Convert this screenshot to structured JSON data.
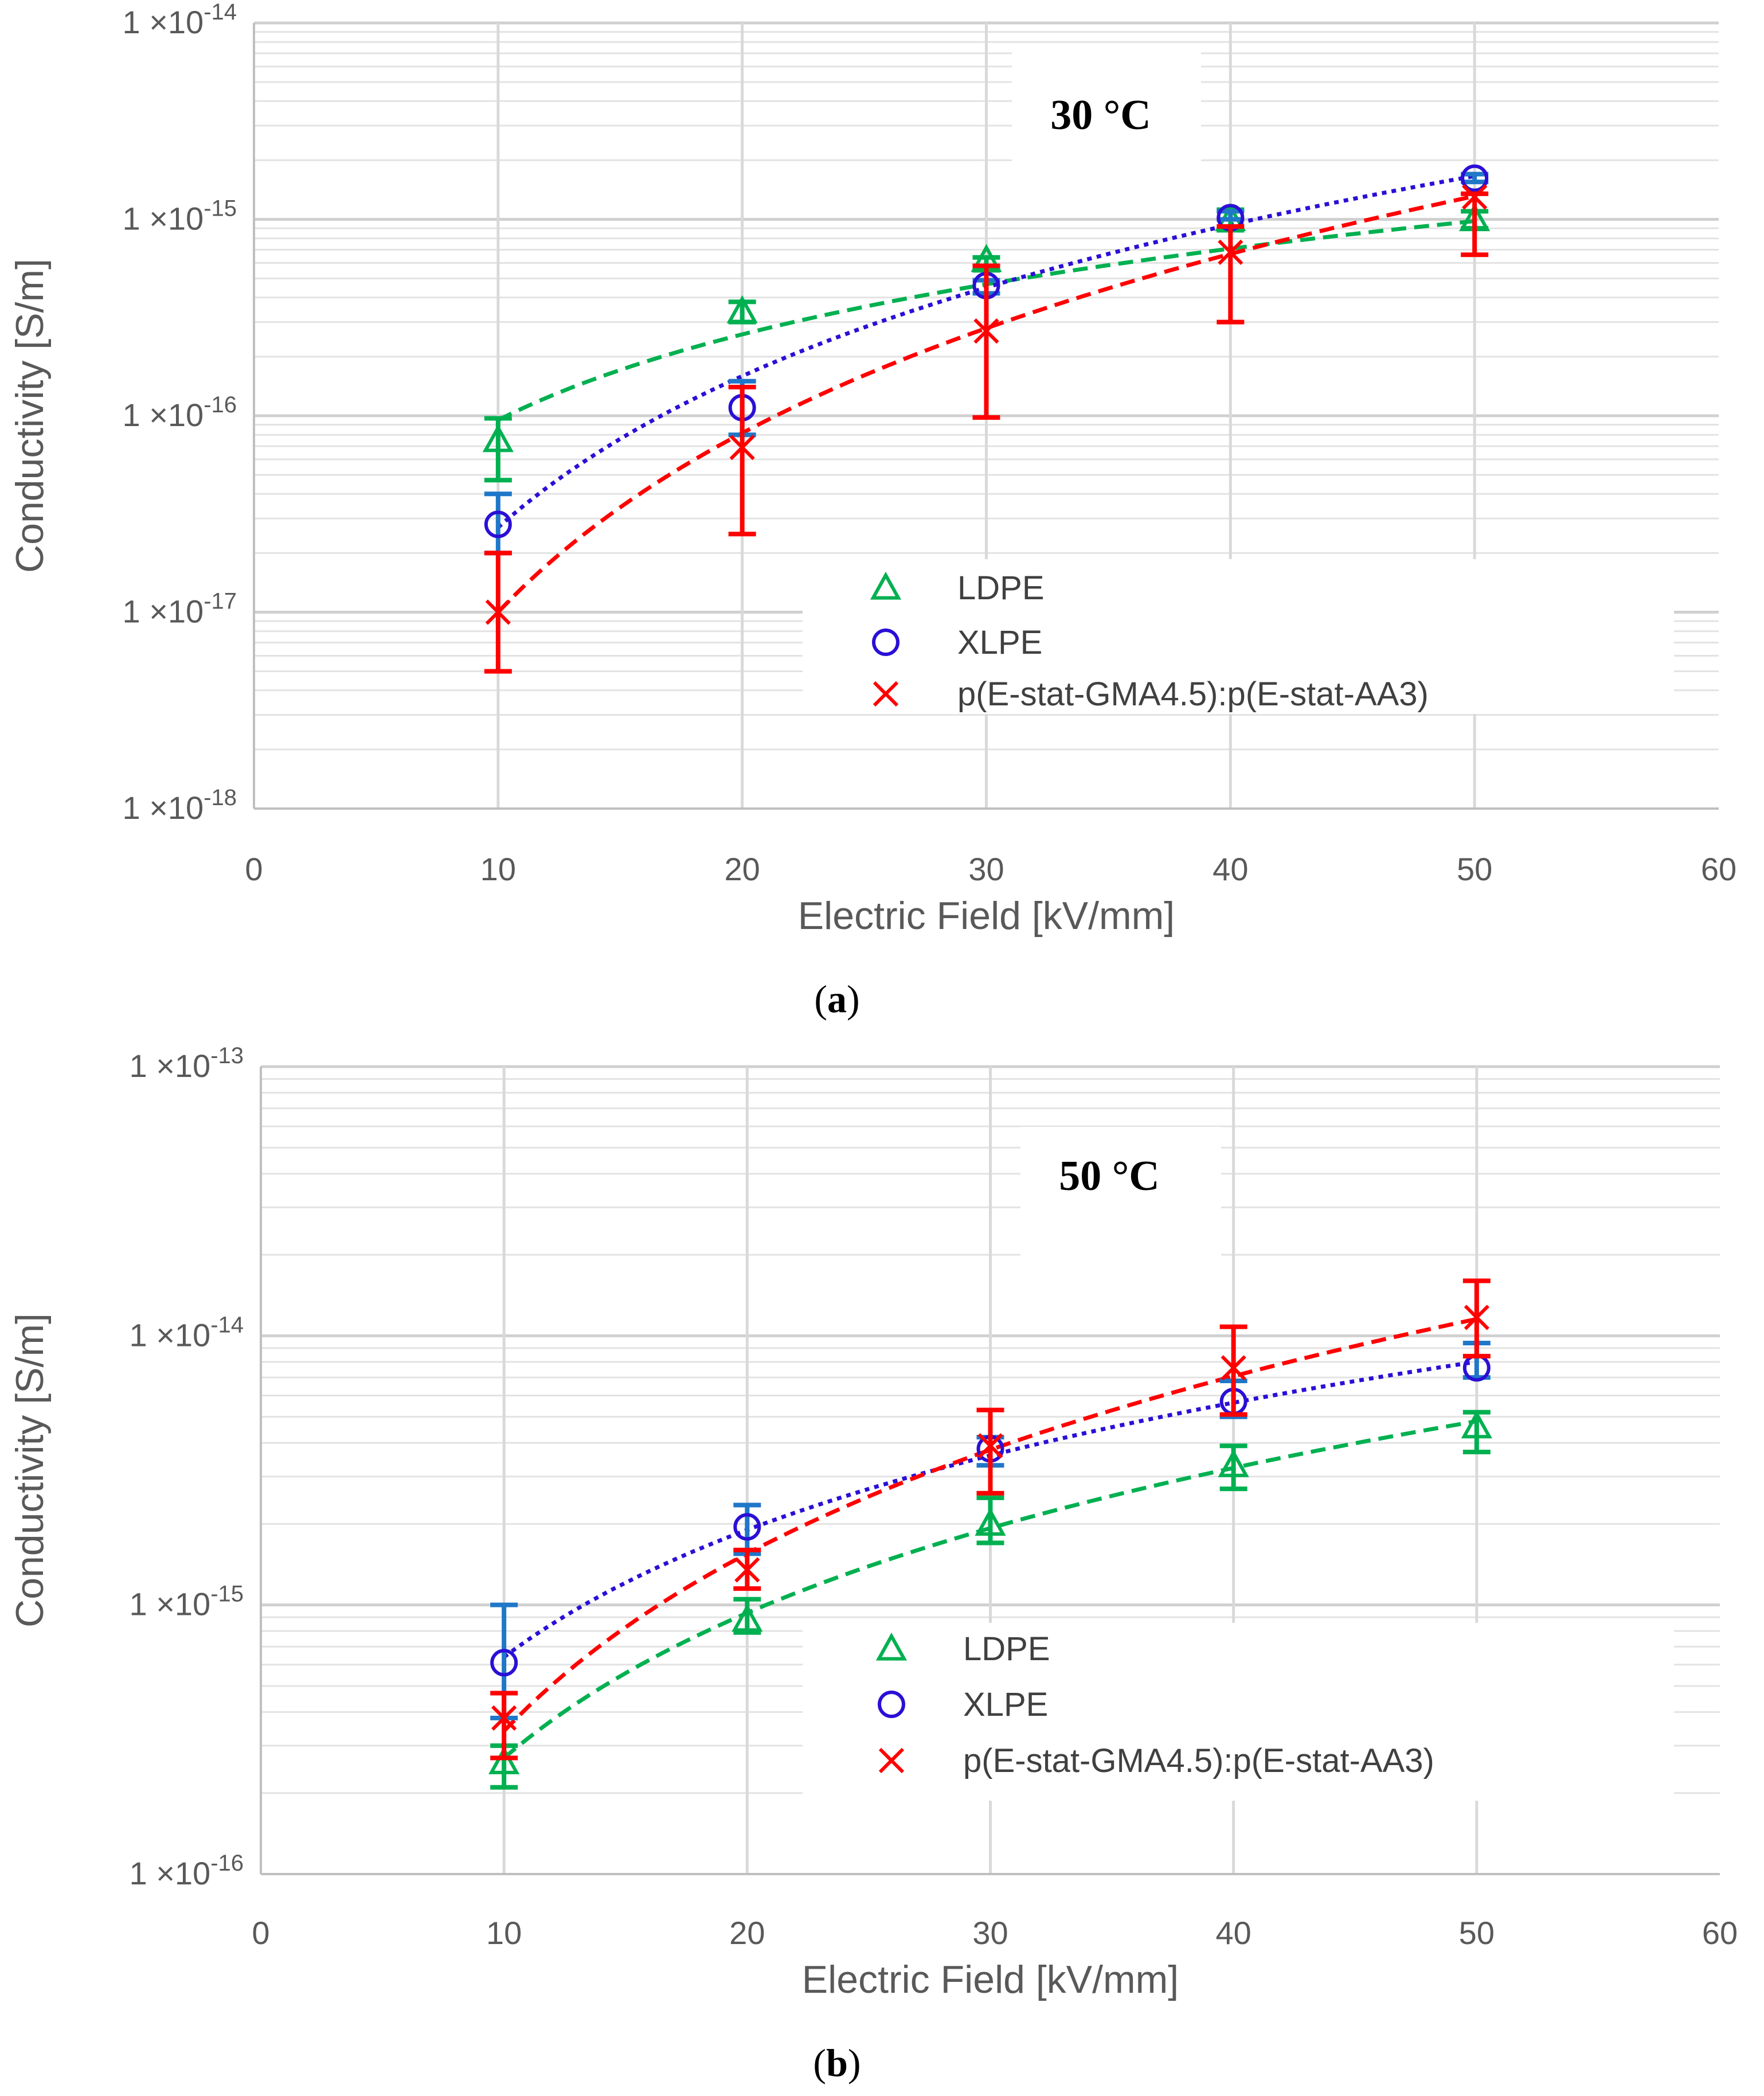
{
  "chart_data": [
    {
      "type": "scatter",
      "panel_label": "a",
      "annotation": "30 °C",
      "xlabel": "Electric Field [kV/mm]",
      "ylabel": "Conductivity [S/m]",
      "xlim": [
        0,
        60
      ],
      "ylim": [
        1e-18,
        1e-14
      ],
      "yscale": "log",
      "grid": true,
      "legend_position": "center-right",
      "x_ticks": [
        "0",
        "10",
        "20",
        "30",
        "40",
        "50",
        "60"
      ],
      "y_ticks": [
        {
          "mantissa": "1 ×10",
          "exponent": "-18"
        },
        {
          "mantissa": "1 ×10",
          "exponent": "-17"
        },
        {
          "mantissa": "1 ×10",
          "exponent": "-16"
        },
        {
          "mantissa": "1 ×10",
          "exponent": "-15"
        },
        {
          "mantissa": "1 ×10",
          "exponent": "-14"
        }
      ],
      "series": [
        {
          "name": "LDPE",
          "marker": "triangle",
          "color": "#00b050",
          "errorColor": "#00b050",
          "x": [
            10,
            20,
            30,
            40,
            50
          ],
          "values": [
            7.5e-17,
            3.4e-16,
            6.2e-16,
            1e-15,
            1e-15
          ],
          "err_low": [
            4.7e-17,
            3e-16,
            5.5e-16,
            8.8e-16,
            9e-16
          ],
          "err_high": [
            9.7e-17,
            3.8e-16,
            6.4e-16,
            1.12e-15,
            1.1e-15
          ],
          "fit": {
            "a": 9.5e-17,
            "b": 1.45,
            "style": "dashed"
          }
        },
        {
          "name": "XLPE",
          "marker": "circle",
          "color": "#2a0fd6",
          "errorColor": "#1f77c8",
          "x": [
            10,
            20,
            30,
            40,
            50
          ],
          "values": [
            2.8e-17,
            1.1e-16,
            4.6e-16,
            1.02e-15,
            1.62e-15
          ],
          "err_low": [
            2e-17,
            8e-17,
            4.2e-16,
            1e-15,
            1.55e-15
          ],
          "err_high": [
            4e-17,
            1.5e-16,
            4.9e-16,
            1.1e-15,
            1.7e-15
          ],
          "fit": {
            "a": 2.7e-17,
            "b": 2.56,
            "style": "dotted"
          }
        },
        {
          "name": "p(E-stat-GMA4.5):p(E-stat-AA3)",
          "marker": "x",
          "color": "#ff0000",
          "errorColor": "#ff0000",
          "x": [
            10,
            20,
            30,
            40,
            50
          ],
          "values": [
            1e-17,
            6.9e-17,
            2.7e-16,
            6.8e-16,
            1.3e-15
          ],
          "err_low": [
            5e-18,
            2.5e-17,
            9.8e-17,
            3e-16,
            6.6e-16
          ],
          "err_high": [
            2e-17,
            1.4e-16,
            5.8e-16,
            9.2e-16,
            1.35e-15
          ],
          "fit": {
            "a": 1e-17,
            "b": 3.03,
            "style": "dashed"
          }
        }
      ]
    },
    {
      "type": "scatter",
      "panel_label": "b",
      "annotation": "50 °C",
      "xlabel": "Electric Field [kV/mm]",
      "ylabel": "Conductivity [S/m]",
      "xlim": [
        0,
        60
      ],
      "ylim": [
        1e-16,
        1e-13
      ],
      "yscale": "log",
      "grid": true,
      "legend_position": "center-right",
      "x_ticks": [
        "0",
        "10",
        "20",
        "30",
        "40",
        "50",
        "60"
      ],
      "y_ticks": [
        {
          "mantissa": "1 ×10",
          "exponent": "-16"
        },
        {
          "mantissa": "1 ×10",
          "exponent": "-15"
        },
        {
          "mantissa": "1 ×10",
          "exponent": "-14"
        },
        {
          "mantissa": "1 ×10",
          "exponent": "-13"
        }
      ],
      "series": [
        {
          "name": "LDPE",
          "marker": "triangle",
          "color": "#00b050",
          "errorColor": "#00b050",
          "x": [
            10,
            20,
            30,
            40,
            50
          ],
          "values": [
            2.6e-16,
            8.8e-16,
            2e-15,
            3.3e-15,
            4.6e-15
          ],
          "err_low": [
            2.1e-16,
            7.9e-16,
            1.7e-15,
            2.7e-15,
            3.7e-15
          ],
          "err_high": [
            3e-16,
            1.05e-15,
            2.5e-15,
            3.9e-15,
            5.2e-15
          ],
          "fit": {
            "a": 2.7e-16,
            "b": 1.79,
            "style": "dashed"
          }
        },
        {
          "name": "XLPE",
          "marker": "circle",
          "color": "#2a0fd6",
          "errorColor": "#1f77c8",
          "x": [
            10,
            20,
            30,
            40,
            50
          ],
          "values": [
            6.1e-16,
            1.95e-15,
            3.8e-15,
            5.7e-15,
            7.6e-15
          ],
          "err_low": [
            3.8e-16,
            1.55e-15,
            3.3e-15,
            5e-15,
            7e-15
          ],
          "err_high": [
            1e-15,
            2.35e-15,
            4.2e-15,
            6.8e-15,
            9.4e-15
          ],
          "fit": {
            "a": 6.4e-16,
            "b": 1.57,
            "style": "dotted"
          }
        },
        {
          "name": "p(E-stat-GMA4.5):p(E-stat-AA3)",
          "marker": "x",
          "color": "#ff0000",
          "errorColor": "#ff0000",
          "x": [
            10,
            20,
            30,
            40,
            50
          ],
          "values": [
            3.8e-16,
            1.35e-15,
            3.9e-15,
            7.6e-15,
            1.17e-14
          ],
          "err_low": [
            2.7e-16,
            1.15e-15,
            2.6e-15,
            5.1e-15,
            8.4e-15
          ],
          "err_high": [
            4.7e-16,
            1.6e-15,
            5.3e-15,
            1.08e-14,
            1.6e-14
          ],
          "fit": {
            "a": 3.4e-16,
            "b": 2.19,
            "style": "dashed"
          }
        }
      ]
    }
  ]
}
